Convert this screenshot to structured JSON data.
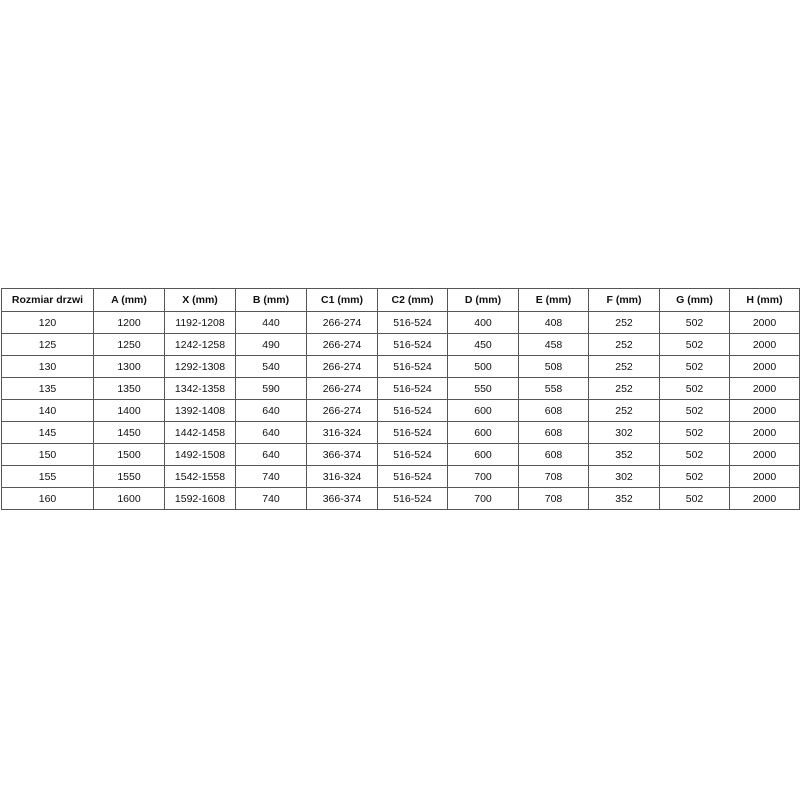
{
  "table": {
    "header": [
      "Rozmiar drzwi",
      "A (mm)",
      "X (mm)",
      "B (mm)",
      "C1 (mm)",
      "C2 (mm)",
      "D (mm)",
      "E (mm)",
      "F (mm)",
      "G (mm)",
      "H (mm)"
    ],
    "rows": [
      [
        120,
        1200,
        "1192-1208",
        440,
        "266-274",
        "516-524",
        400,
        408,
        252,
        502,
        2000
      ],
      [
        125,
        1250,
        "1242-1258",
        490,
        "266-274",
        "516-524",
        450,
        458,
        252,
        502,
        2000
      ],
      [
        130,
        1300,
        "1292-1308",
        540,
        "266-274",
        "516-524",
        500,
        508,
        252,
        502,
        2000
      ],
      [
        135,
        1350,
        "1342-1358",
        590,
        "266-274",
        "516-524",
        550,
        558,
        252,
        502,
        2000
      ],
      [
        140,
        1400,
        "1392-1408",
        640,
        "266-274",
        "516-524",
        600,
        608,
        252,
        502,
        2000
      ],
      [
        145,
        1450,
        "1442-1458",
        640,
        "316-324",
        "516-524",
        600,
        608,
        302,
        502,
        2000
      ],
      [
        150,
        1500,
        "1492-1508",
        640,
        "366-374",
        "516-524",
        600,
        608,
        352,
        502,
        2000
      ],
      [
        155,
        1550,
        "1542-1558",
        740,
        "316-324",
        "516-524",
        700,
        708,
        302,
        502,
        2000
      ],
      [
        160,
        1600,
        "1592-1608",
        740,
        "366-374",
        "516-524",
        700,
        708,
        352,
        502,
        2000
      ]
    ]
  }
}
